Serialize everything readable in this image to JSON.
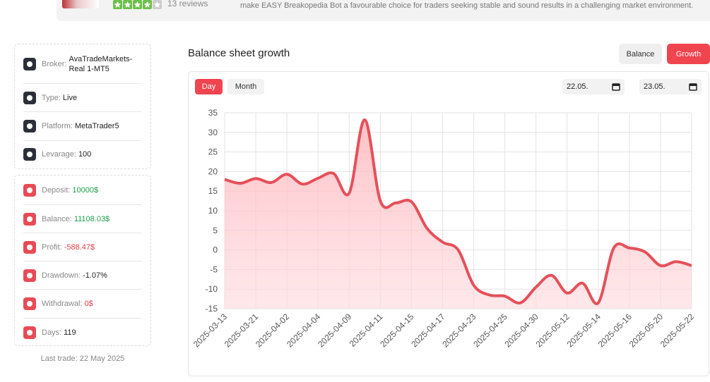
{
  "header": {
    "rating": 4,
    "reviews": "13 reviews",
    "description": "make EASY Breakopedia Bot a favourable choice for traders seeking stable and sound results in a challenging market environment."
  },
  "details": [
    {
      "label": "Broker:",
      "value": "AvaTradeMarkets-Real 1-MT5"
    },
    {
      "label": "Type:",
      "value": "Live"
    },
    {
      "label": "Platform:",
      "value": "MetaTrader5"
    },
    {
      "label": "Levarage:",
      "value": "100"
    }
  ],
  "stats": [
    {
      "label": "Deposit:",
      "value": "10000$",
      "tone": "positive"
    },
    {
      "label": "Balance:",
      "value": "11108.03$",
      "tone": "positive"
    },
    {
      "label": "Profit:",
      "value": "-588.47$",
      "tone": "negative"
    },
    {
      "label": "Drawdown:",
      "value": "-1.07%",
      "tone": "neutral"
    },
    {
      "label": "Withdrawal:",
      "value": "0$",
      "tone": "negative"
    },
    {
      "label": "Days:",
      "value": "119",
      "tone": "neutral"
    }
  ],
  "last_trade": "Last trade: 22 May 2025",
  "chart_panel": {
    "title": "Balance sheet growth",
    "tabs": [
      "Balance",
      "Growth"
    ],
    "active_tab": 1,
    "periods": [
      "Day",
      "Month"
    ],
    "active_period": 0,
    "date_from": "22.05.",
    "date_to": "23.05."
  },
  "chart_data": {
    "type": "area",
    "color": "#e5505a",
    "grid": true,
    "categories": [
      "2025-03-13",
      null,
      "2025-03-21",
      null,
      "2025-04-02",
      null,
      "2025-04-04",
      null,
      "2025-04-09",
      null,
      "2025-04-11",
      null,
      "2025-04-15",
      null,
      "2025-04-17",
      null,
      "2025-04-23",
      null,
      "2025-04-25",
      null,
      "2025-04-30",
      null,
      "2025-05-12",
      null,
      "2025-05-14",
      null,
      "2025-05-16",
      null,
      "2025-05-20",
      null,
      "2025-05-22"
    ],
    "values": [
      18,
      17,
      18.2,
      17.2,
      19.3,
      16.8,
      18.3,
      19.5,
      14.5,
      33.2,
      12.5,
      12,
      12.3,
      5.5,
      2,
      0,
      -9,
      -11.5,
      -11.8,
      -13.5,
      -9.5,
      -6.5,
      -11,
      -8.5,
      -13.5,
      0.5,
      0.5,
      -0.5,
      -4,
      -3,
      -4
    ],
    "ylim": [
      -15,
      35
    ],
    "yticks": [
      -15,
      -10,
      -5,
      0,
      5,
      10,
      15,
      20,
      25,
      30,
      35
    ]
  }
}
